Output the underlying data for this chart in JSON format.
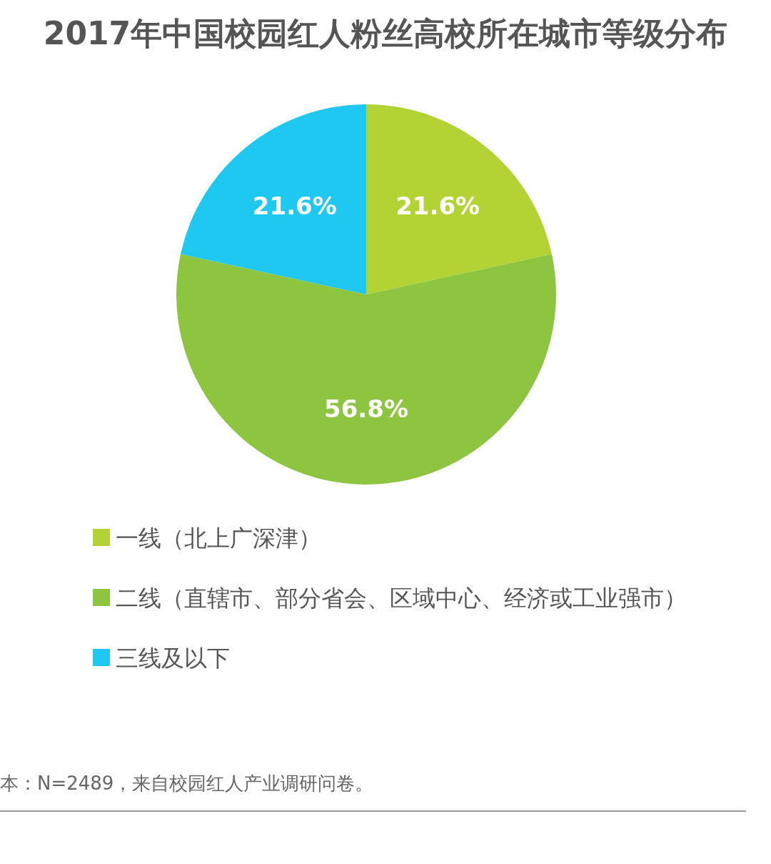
{
  "chart_data": {
    "type": "pie",
    "title": "2017年中国校园红人粉丝高校所在城市等级分布",
    "categories": [
      "一线（北上广深津）",
      "二线（直辖市、部分省会、区域中心、经济或工业强市）",
      "三线及以下"
    ],
    "values": [
      21.6,
      56.8,
      21.6
    ],
    "colors": [
      "#b3d335",
      "#8dc540",
      "#1ec8f0"
    ],
    "value_labels": [
      "21.6%",
      "56.8%",
      "21.6%"
    ],
    "legend": "bottom",
    "annotations": [
      "本：N=2489，来自校园红人产业调研问卷。"
    ]
  }
}
